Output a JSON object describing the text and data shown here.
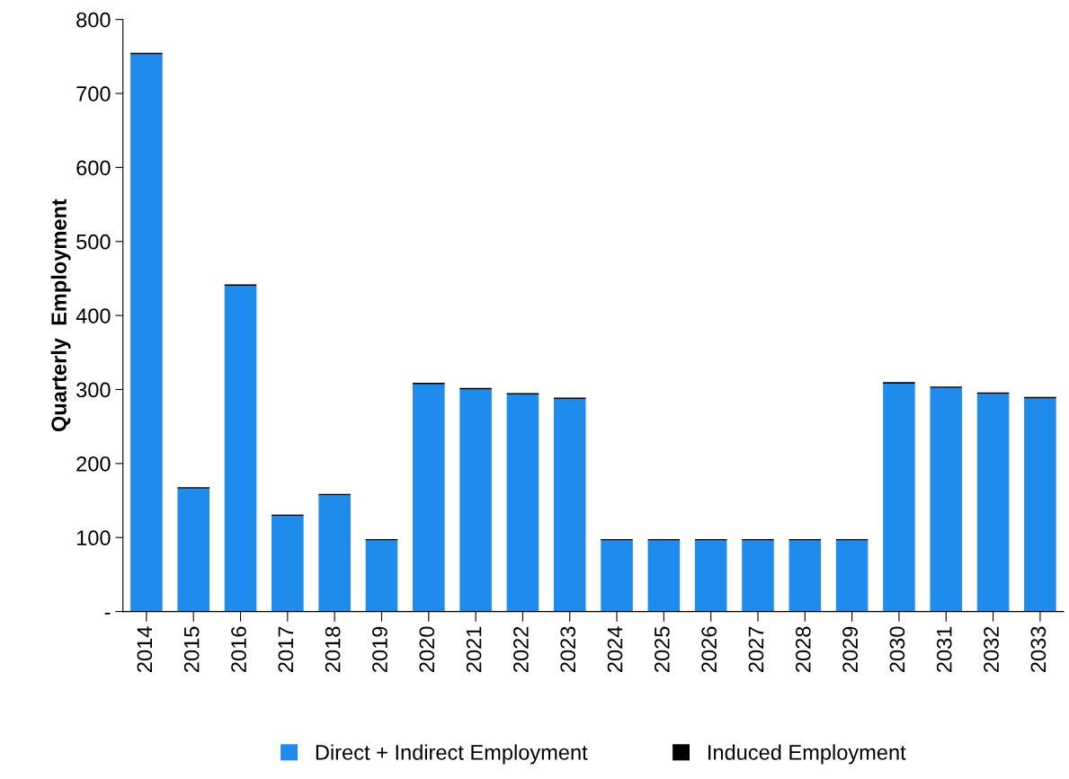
{
  "chart_data": {
    "type": "bar",
    "stacked": true,
    "ylabel": "Quarterly  Employment",
    "categories": [
      "2014",
      "2015",
      "2016",
      "2017",
      "2018",
      "2019",
      "2020",
      "2021",
      "2022",
      "2023",
      "2024",
      "2025",
      "2026",
      "2027",
      "2028",
      "2029",
      "2030",
      "2031",
      "2032",
      "2033"
    ],
    "series": [
      {
        "name": "Direct + Indirect Employment",
        "color": "#1f8bed",
        "values": [
          753,
          166,
          440,
          129,
          157,
          96,
          307,
          300,
          293,
          287,
          96,
          96,
          96,
          96,
          96,
          96,
          308,
          302,
          294,
          288
        ]
      },
      {
        "name": "Induced Employment",
        "color": "#000000",
        "values": [
          2,
          2,
          2,
          2,
          2,
          2,
          2,
          2,
          2,
          2,
          2,
          2,
          2,
          2,
          2,
          2,
          2,
          2,
          2,
          2
        ]
      }
    ],
    "ylim": [
      0,
      800
    ],
    "yticks": [
      {
        "value": 0,
        "label": "-"
      },
      100,
      200,
      300,
      400,
      500,
      600,
      700,
      800
    ],
    "grid": false,
    "legend": "bottom"
  }
}
